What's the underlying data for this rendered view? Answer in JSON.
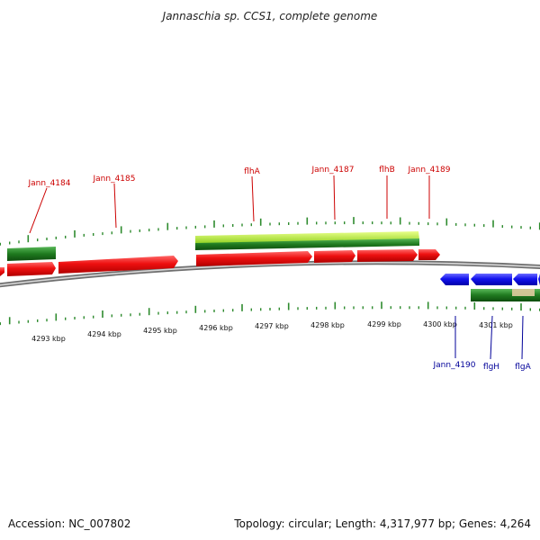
{
  "title": "Jannaschia sp. CCS1, complete genome",
  "footer": {
    "accession": "Accession: NC_007802",
    "topology": "Topology: circular; Length: 4,317,977 bp; Genes: 4,264"
  },
  "colors": {
    "forward_gene": "#e81010",
    "forward_label": "#cc0000",
    "reverse_gene": "#1010dd",
    "reverse_label": "#000099",
    "cds_dark_green": "#1f7a1f",
    "cds_light_green": "#a6e22e",
    "tick_green": "#2e8b2e",
    "backbone": "#888888",
    "highlight_tan": "#d8c89a"
  },
  "axis": {
    "unit": "kbp",
    "ticks": [
      {
        "value": 4293,
        "label": "4293 kbp"
      },
      {
        "value": 4294,
        "label": "4294 kbp"
      },
      {
        "value": 4295,
        "label": "4295 kbp"
      },
      {
        "value": 4296,
        "label": "4296 kbp"
      },
      {
        "value": 4297,
        "label": "4297 kbp"
      },
      {
        "value": 4298,
        "label": "4298 kbp"
      },
      {
        "value": 4299,
        "label": "4299 kbp"
      },
      {
        "value": 4300,
        "label": "4300 kbp"
      },
      {
        "value": 4301,
        "label": "4301 kbp"
      }
    ]
  },
  "forward_labels": [
    {
      "name": "Jann_4184"
    },
    {
      "name": "Jann_4185"
    },
    {
      "name": "flhA"
    },
    {
      "name": "Jann_4187"
    },
    {
      "name": "flhB"
    },
    {
      "name": "Jann_4189"
    }
  ],
  "reverse_labels": [
    {
      "name": "Jann_4190"
    },
    {
      "name": "flgH"
    },
    {
      "name": "flgA"
    }
  ]
}
